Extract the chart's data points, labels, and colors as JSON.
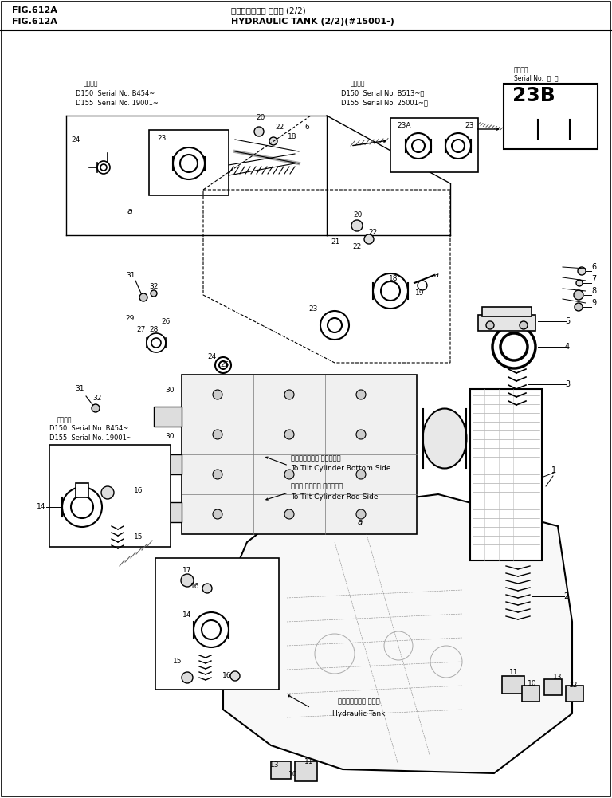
{
  "title_jp": "ハイドロリック タンク (2/2)",
  "title_en": "HYDRAULIC TANK (2/2)(#15001-)",
  "fig_label": "FIG.612A",
  "bg": "#ffffff",
  "lc": "#000000",
  "gray": "#888888",
  "lgray": "#cccccc",
  "fig_width": 7.68,
  "fig_height": 10.01,
  "dpi": 100
}
